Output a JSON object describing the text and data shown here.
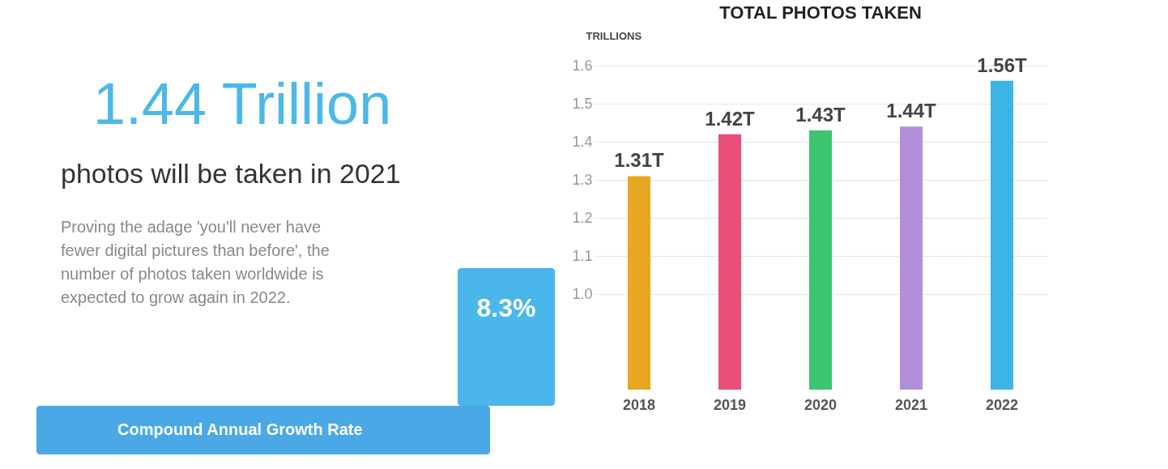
{
  "chart_data": [
    {
      "type": "other",
      "title": "1.44 Trillion",
      "subtitle": "photos will be taken in 2021",
      "annotations": [
        "Proving the adage 'you'll never have",
        "fewer digital pictures than before', the",
        "number of photos taken worldwide is",
        "expected to grow again in 2022.",
        "8.3%",
        "Compound Annual Growth Rate"
      ]
    },
    {
      "type": "bar",
      "title": "TOTAL PHOTOS TAKEN",
      "ylabel": "TRILLIONS",
      "categories": [
        "2018",
        "2019",
        "2020",
        "2021",
        "2022"
      ],
      "values": [
        1.31,
        1.42,
        1.43,
        1.44,
        1.56
      ],
      "colors": [
        "#e6a820",
        "#e8507a",
        "#3cc46e",
        "#b08fd8",
        "#3bb5e8"
      ],
      "value_labels": [
        "1.31T",
        "1.42T",
        "1.43T",
        "1.44T",
        "1.56T"
      ],
      "ylim": [
        0.75,
        1.6
      ],
      "yticks": [
        {
          "value": 1.0,
          "label": "1.0"
        },
        1.1,
        1.2,
        1.3,
        1.4,
        1.5,
        1.6
      ],
      "grid": "y"
    }
  ]
}
